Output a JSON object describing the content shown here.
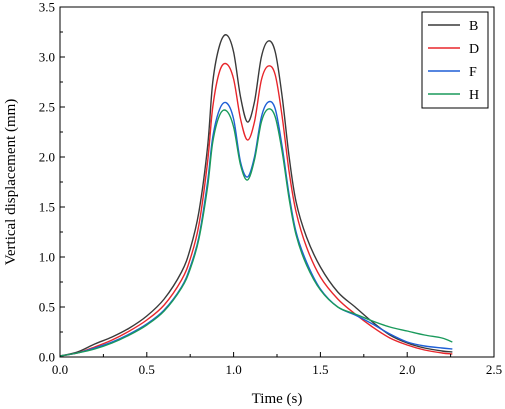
{
  "chart_data": {
    "type": "line",
    "title": "",
    "xlabel": "Time (s)",
    "ylabel": "Vertical displacement (mm)",
    "xlim": [
      0,
      2.5
    ],
    "ylim": [
      0,
      3.5
    ],
    "xticks": [
      "0.0",
      "0.5",
      "1.0",
      "1.5",
      "2.0",
      "2.5"
    ],
    "yticks": [
      "0.0",
      "0.5",
      "1.0",
      "1.5",
      "2.0",
      "2.5",
      "3.0",
      "3.5"
    ],
    "grid": false,
    "legend_position": "top-right",
    "series": [
      {
        "name": "B",
        "color": "#3a3a3a",
        "points": [
          [
            0,
            0.01
          ],
          [
            0.1,
            0.05
          ],
          [
            0.2,
            0.13
          ],
          [
            0.3,
            0.2
          ],
          [
            0.4,
            0.29
          ],
          [
            0.5,
            0.41
          ],
          [
            0.6,
            0.58
          ],
          [
            0.7,
            0.85
          ],
          [
            0.75,
            1.08
          ],
          [
            0.8,
            1.45
          ],
          [
            0.85,
            2.1
          ],
          [
            0.88,
            2.75
          ],
          [
            0.92,
            3.12
          ],
          [
            0.96,
            3.22
          ],
          [
            1.0,
            3.05
          ],
          [
            1.04,
            2.6
          ],
          [
            1.08,
            2.35
          ],
          [
            1.12,
            2.55
          ],
          [
            1.16,
            3.0
          ],
          [
            1.2,
            3.16
          ],
          [
            1.24,
            3.05
          ],
          [
            1.28,
            2.6
          ],
          [
            1.32,
            2.0
          ],
          [
            1.36,
            1.55
          ],
          [
            1.42,
            1.2
          ],
          [
            1.5,
            0.9
          ],
          [
            1.6,
            0.65
          ],
          [
            1.7,
            0.5
          ],
          [
            1.8,
            0.35
          ],
          [
            1.9,
            0.22
          ],
          [
            2.0,
            0.14
          ],
          [
            2.1,
            0.09
          ],
          [
            2.2,
            0.06
          ],
          [
            2.26,
            0.05
          ]
        ]
      },
      {
        "name": "D",
        "color": "#e8262b",
        "points": [
          [
            0,
            0.01
          ],
          [
            0.1,
            0.04
          ],
          [
            0.2,
            0.1
          ],
          [
            0.3,
            0.17
          ],
          [
            0.4,
            0.26
          ],
          [
            0.5,
            0.37
          ],
          [
            0.6,
            0.52
          ],
          [
            0.7,
            0.77
          ],
          [
            0.75,
            0.98
          ],
          [
            0.8,
            1.32
          ],
          [
            0.85,
            1.95
          ],
          [
            0.88,
            2.5
          ],
          [
            0.92,
            2.86
          ],
          [
            0.96,
            2.93
          ],
          [
            1.0,
            2.78
          ],
          [
            1.04,
            2.38
          ],
          [
            1.08,
            2.17
          ],
          [
            1.12,
            2.35
          ],
          [
            1.16,
            2.77
          ],
          [
            1.2,
            2.91
          ],
          [
            1.24,
            2.82
          ],
          [
            1.28,
            2.4
          ],
          [
            1.32,
            1.85
          ],
          [
            1.36,
            1.45
          ],
          [
            1.42,
            1.1
          ],
          [
            1.5,
            0.8
          ],
          [
            1.6,
            0.58
          ],
          [
            1.7,
            0.43
          ],
          [
            1.8,
            0.3
          ],
          [
            1.9,
            0.19
          ],
          [
            2.0,
            0.12
          ],
          [
            2.1,
            0.07
          ],
          [
            2.2,
            0.04
          ],
          [
            2.26,
            0.03
          ]
        ]
      },
      {
        "name": "F",
        "color": "#1f5fd6",
        "points": [
          [
            0,
            0.01
          ],
          [
            0.1,
            0.04
          ],
          [
            0.2,
            0.09
          ],
          [
            0.3,
            0.15
          ],
          [
            0.4,
            0.23
          ],
          [
            0.5,
            0.33
          ],
          [
            0.6,
            0.47
          ],
          [
            0.7,
            0.7
          ],
          [
            0.75,
            0.9
          ],
          [
            0.8,
            1.2
          ],
          [
            0.85,
            1.75
          ],
          [
            0.88,
            2.2
          ],
          [
            0.92,
            2.48
          ],
          [
            0.96,
            2.54
          ],
          [
            1.0,
            2.38
          ],
          [
            1.04,
            1.95
          ],
          [
            1.08,
            1.8
          ],
          [
            1.12,
            2.0
          ],
          [
            1.16,
            2.4
          ],
          [
            1.2,
            2.55
          ],
          [
            1.24,
            2.48
          ],
          [
            1.28,
            2.1
          ],
          [
            1.32,
            1.62
          ],
          [
            1.36,
            1.25
          ],
          [
            1.42,
            0.95
          ],
          [
            1.5,
            0.68
          ],
          [
            1.6,
            0.5
          ],
          [
            1.7,
            0.42
          ],
          [
            1.8,
            0.33
          ],
          [
            1.9,
            0.23
          ],
          [
            2.0,
            0.15
          ],
          [
            2.1,
            0.11
          ],
          [
            2.2,
            0.09
          ],
          [
            2.26,
            0.08
          ]
        ]
      },
      {
        "name": "H",
        "color": "#1a9a5c",
        "points": [
          [
            0,
            0.01
          ],
          [
            0.1,
            0.04
          ],
          [
            0.2,
            0.08
          ],
          [
            0.3,
            0.14
          ],
          [
            0.4,
            0.22
          ],
          [
            0.5,
            0.32
          ],
          [
            0.6,
            0.46
          ],
          [
            0.7,
            0.69
          ],
          [
            0.75,
            0.88
          ],
          [
            0.8,
            1.18
          ],
          [
            0.85,
            1.7
          ],
          [
            0.88,
            2.15
          ],
          [
            0.92,
            2.42
          ],
          [
            0.96,
            2.46
          ],
          [
            1.0,
            2.3
          ],
          [
            1.04,
            1.92
          ],
          [
            1.08,
            1.77
          ],
          [
            1.12,
            1.97
          ],
          [
            1.16,
            2.35
          ],
          [
            1.2,
            2.48
          ],
          [
            1.24,
            2.4
          ],
          [
            1.28,
            2.05
          ],
          [
            1.32,
            1.58
          ],
          [
            1.36,
            1.22
          ],
          [
            1.42,
            0.92
          ],
          [
            1.5,
            0.67
          ],
          [
            1.6,
            0.5
          ],
          [
            1.7,
            0.43
          ],
          [
            1.8,
            0.36
          ],
          [
            1.9,
            0.3
          ],
          [
            2.0,
            0.26
          ],
          [
            2.1,
            0.22
          ],
          [
            2.2,
            0.19
          ],
          [
            2.26,
            0.15
          ]
        ]
      }
    ]
  }
}
